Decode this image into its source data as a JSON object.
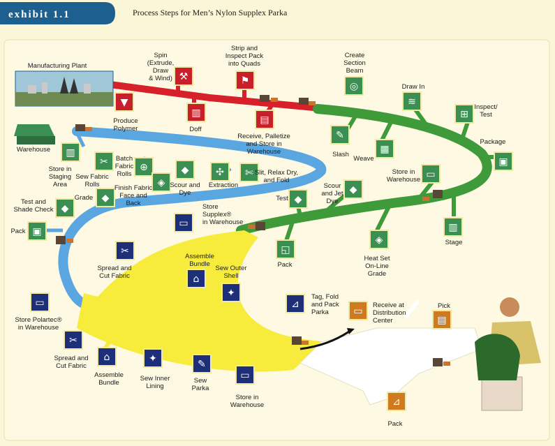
{
  "header": {
    "exhibit_label": "exhibit 1.1",
    "title": "Process Steps for Men’s Nylon Supplex Parka"
  },
  "colors": {
    "header_pill": "#1d5f8e",
    "background": "#fbf6d7",
    "panel": "#fdf9e2",
    "red_path": "#d8202a",
    "green_path": "#3f9a3a",
    "blue_path": "#5aa6e0",
    "yellow_path": "#f7ec3c",
    "white_path": "#ffffff",
    "icon_green": "#3c8f52",
    "icon_red": "#c8202a",
    "icon_navy": "#1e2f7a",
    "icon_orange": "#cf7a1e"
  },
  "labels": {
    "manufacturing_plant": "Manufacturing Plant",
    "spin": [
      "Spin",
      "(Extrude,",
      "Draw",
      "& Wind)"
    ],
    "strip_inspect": [
      "Strip and",
      "Inspect Pack",
      "into Quads"
    ],
    "create_beam": [
      "Create",
      "Section",
      "Beam"
    ],
    "produce_polymer": [
      "Produce",
      "Polymer"
    ],
    "doff": [
      "Doff"
    ],
    "receive_palletize": [
      "Receive, Palletize",
      "and Store in",
      "Warehouse"
    ],
    "draw_in": [
      "Draw In"
    ],
    "inspect_test": [
      "Inspect/",
      "Test"
    ],
    "package": [
      "Package"
    ],
    "slash": [
      "Slash"
    ],
    "weave": [
      "Weave"
    ],
    "warehouse": [
      "Warehouse"
    ],
    "store_staging": [
      "Store in",
      "Staging",
      "Area"
    ],
    "sew_fabric_rolls": [
      "Sew Fabric",
      "Rolls"
    ],
    "batch_fabric_rolls": [
      "Batch",
      "Fabric",
      "Rolls"
    ],
    "finish_fabric": [
      "Finish Fabric",
      "Face and",
      "Back"
    ],
    "scour_dye": [
      "Scour and",
      "Dye"
    ],
    "extraction": [
      "Extraction"
    ],
    "slit_relax": [
      "Slit, Relax Dry,",
      "and Fold"
    ],
    "store_in_warehouse_green": [
      "Store in",
      "Warehouse"
    ],
    "grade": [
      "Grade"
    ],
    "test_shade": [
      "Test and",
      "Shade Check"
    ],
    "scour_jet_dye": [
      "Scour",
      "and Jet",
      "Dye"
    ],
    "test": [
      "Test"
    ],
    "store_supplex": [
      "Store",
      "Supplex®",
      "in Warehouse"
    ],
    "stage": [
      "Stage"
    ],
    "pack_left": [
      "Pack"
    ],
    "pack_green": [
      "Pack"
    ],
    "heat_set": [
      "Heat Set",
      "On-Line",
      "Grade"
    ],
    "spread_cut_top": [
      "Spread and",
      "Cut Fabric"
    ],
    "assemble_bundle_top": [
      "Assemble",
      "Bundle"
    ],
    "sew_outer_shell": [
      "Sew Outer",
      "Shell"
    ],
    "tag_fold_pack": [
      "Tag, Fold",
      "and Pack",
      "Parka"
    ],
    "receive_distribution": [
      "Receive at",
      "Distribution",
      "Center"
    ],
    "pick": [
      "Pick"
    ],
    "store_polartec": [
      "Store Polartec®",
      "in Warehouse"
    ],
    "spread_cut_bottom": [
      "Spread and",
      "Cut Fabric"
    ],
    "assemble_bundle_bottom": [
      "Assemble",
      "Bundle"
    ],
    "sew_inner_lining": [
      "Sew Inner",
      "Lining"
    ],
    "sew_parka": [
      "Sew",
      "Parka"
    ],
    "store_in_warehouse_yellow": [
      "Store in",
      "Warehouse"
    ],
    "pack_bottom": [
      "Pack"
    ]
  },
  "icons": [
    {
      "id": "spin-icon",
      "color": "#c8202a",
      "glyph": "⚒"
    },
    {
      "id": "strip-inspect-icon",
      "color": "#c8202a",
      "glyph": "⚑"
    },
    {
      "id": "produce-polymer-icon",
      "color": "#c8202a",
      "glyph": "▼"
    },
    {
      "id": "doff-icon",
      "color": "#c8202a",
      "glyph": "▥"
    },
    {
      "id": "receive-palletize-icon",
      "color": "#c8202a",
      "glyph": "▤"
    },
    {
      "id": "create-beam-icon",
      "color": "#3c8f52",
      "glyph": "◎"
    },
    {
      "id": "draw-in-icon",
      "color": "#3c8f52",
      "glyph": "≋"
    },
    {
      "id": "inspect-test-icon",
      "color": "#3c8f52",
      "glyph": "⊞"
    },
    {
      "id": "package-icon",
      "color": "#3c8f52",
      "glyph": "▣"
    },
    {
      "id": "slash-icon",
      "color": "#3c8f52",
      "glyph": "✎"
    },
    {
      "id": "weave-icon",
      "color": "#3c8f52",
      "glyph": "▦"
    },
    {
      "id": "store-staging-icon",
      "color": "#3c8f52",
      "glyph": "▥"
    },
    {
      "id": "sew-fabric-rolls-icon",
      "color": "#3c8f52",
      "glyph": "✂"
    },
    {
      "id": "batch-fabric-icon",
      "color": "#3c8f52",
      "glyph": "⊕"
    },
    {
      "id": "finish-fabric-icon",
      "color": "#3c8f52",
      "glyph": "◈"
    },
    {
      "id": "scour-dye-icon",
      "color": "#3c8f52",
      "glyph": "◆"
    },
    {
      "id": "extraction-icon",
      "color": "#3c8f52",
      "glyph": "✣"
    },
    {
      "id": "slit-relax-icon",
      "color": "#3c8f52",
      "glyph": "✄"
    },
    {
      "id": "store-warehouse-green-icon",
      "color": "#3c8f52",
      "glyph": "▭"
    },
    {
      "id": "grade-icon",
      "color": "#3c8f52",
      "glyph": "◆"
    },
    {
      "id": "test-shade-icon",
      "color": "#3c8f52",
      "glyph": "◆"
    },
    {
      "id": "scour-jet-icon",
      "color": "#3c8f52",
      "glyph": "◆"
    },
    {
      "id": "test-icon",
      "color": "#3c8f52",
      "glyph": "◆"
    },
    {
      "id": "store-supplex-icon",
      "color": "#1e2f7a",
      "glyph": "▭"
    },
    {
      "id": "stage-icon",
      "color": "#3c8f52",
      "glyph": "▥"
    },
    {
      "id": "pack-left-icon",
      "color": "#3c8f52",
      "glyph": "▣"
    },
    {
      "id": "pack-green-icon",
      "color": "#3c8f52",
      "glyph": "◱"
    },
    {
      "id": "heat-set-icon",
      "color": "#3c8f52",
      "glyph": "◈"
    },
    {
      "id": "spread-cut-top-icon",
      "color": "#1e2f7a",
      "glyph": "✂"
    },
    {
      "id": "assemble-top-icon",
      "color": "#1e2f7a",
      "glyph": "⌂"
    },
    {
      "id": "sew-outer-icon",
      "color": "#1e2f7a",
      "glyph": "✦"
    },
    {
      "id": "tag-fold-icon",
      "color": "#1e2f7a",
      "glyph": "⊿"
    },
    {
      "id": "receive-dc-icon",
      "color": "#cf7a1e",
      "glyph": "▭"
    },
    {
      "id": "pick-icon",
      "color": "#cf7a1e",
      "glyph": "▤"
    },
    {
      "id": "store-polartec-icon",
      "color": "#1e2f7a",
      "glyph": "▭"
    },
    {
      "id": "spread-cut-bottom-icon",
      "color": "#1e2f7a",
      "glyph": "✂"
    },
    {
      "id": "assemble-bottom-icon",
      "color": "#1e2f7a",
      "glyph": "⌂"
    },
    {
      "id": "sew-inner-icon",
      "color": "#1e2f7a",
      "glyph": "✦"
    },
    {
      "id": "sew-parka-icon",
      "color": "#1e2f7a",
      "glyph": "✎"
    },
    {
      "id": "store-warehouse-yellow-icon",
      "color": "#1e2f7a",
      "glyph": "▭"
    },
    {
      "id": "pack-bottom-icon",
      "color": "#cf7a1e",
      "glyph": "⊿"
    }
  ]
}
